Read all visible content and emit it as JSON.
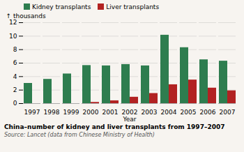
{
  "chart_data": {
    "type": "bar",
    "title": "China–number of kidney and liver transplants from 1997–2007",
    "source": "Source: Lancet (data from Chinese Ministry of Health)",
    "xlabel": "Year",
    "ylabel": "thousands",
    "categories": [
      "1997",
      "1998",
      "1999",
      "2000",
      "2001",
      "2002",
      "2003",
      "2004",
      "2005",
      "2006",
      "2007"
    ],
    "series": [
      {
        "name": "Kidney transplants",
        "color": "#2e7d4f",
        "values": [
          3.0,
          3.6,
          4.4,
          5.65,
          5.6,
          5.8,
          5.6,
          10.15,
          8.3,
          6.5,
          6.3
        ]
      },
      {
        "name": "Liver transplants",
        "color": "#b22222",
        "values": [
          0.0,
          0.0,
          0.0,
          0.18,
          0.42,
          0.95,
          1.5,
          2.8,
          3.5,
          2.3,
          1.9
        ]
      }
    ],
    "ylim": [
      0,
      12
    ],
    "yticks": [
      0,
      2,
      4,
      6,
      8,
      10,
      12
    ],
    "grid": true,
    "legend": "upper left"
  }
}
